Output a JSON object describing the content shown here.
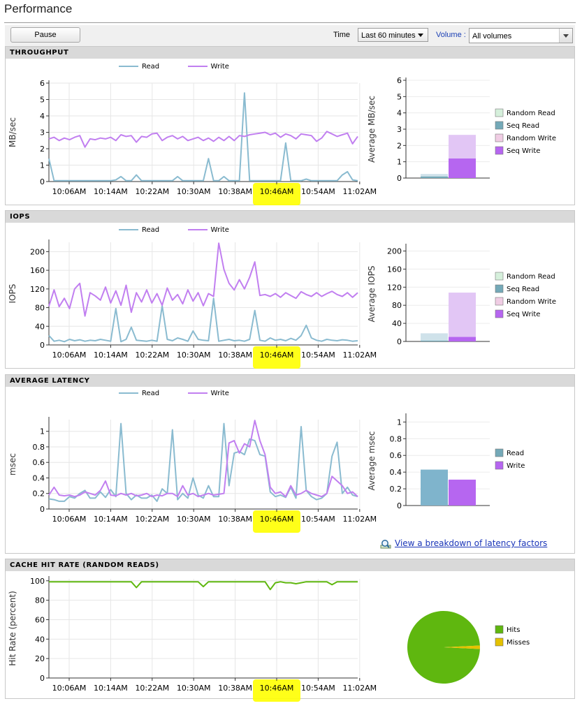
{
  "page": {
    "title": "Performance"
  },
  "toolbar": {
    "pause_label": "Pause",
    "time_label": "Time",
    "time_value": "Last 60 minutes",
    "volume_label": "Volume :",
    "volume_value": "All volumes"
  },
  "colors": {
    "read": "#8abbd0",
    "write": "#c17ff0",
    "hits": "#5fb70f",
    "misses": "#e5c200",
    "highlight": "#ffff00"
  },
  "legend": {
    "read": "Read",
    "write": "Write"
  },
  "time_ticks": [
    "10:06AM",
    "10:14AM",
    "10:22AM",
    "10:30AM",
    "10:38AM",
    "10:46AM",
    "10:54AM",
    "11:02AM"
  ],
  "panels": {
    "throughput": {
      "header": "THROUGHPUT",
      "ylabel": "MB/sec",
      "bar_ylabel": "Average MB/sec",
      "bar_legend": [
        "Random Read",
        "Seq Read",
        "Random Write",
        "Seq Write"
      ]
    },
    "iops": {
      "header": "IOPS",
      "ylabel": "IOPS",
      "bar_ylabel": "Average IOPS",
      "bar_legend": [
        "Random Read",
        "Seq Read",
        "Random Write",
        "Seq Write"
      ]
    },
    "latency": {
      "header": "AVERAGE LATENCY",
      "ylabel": "msec",
      "bar_ylabel": "Average msec",
      "bar_legend": [
        "Read",
        "Write"
      ],
      "link_text": "View a breakdown of latency factors"
    },
    "cache": {
      "header": "CACHE HIT RATE (RANDOM READS)",
      "ylabel": "Hit Rate (percent)",
      "pie_legend": [
        "Hits",
        "Misses"
      ]
    }
  },
  "chart_data": [
    {
      "type": "line",
      "id": "throughput",
      "xlabel": "",
      "ylabel": "MB/sec",
      "ylim": [
        0,
        6
      ],
      "yticks": [
        0,
        1,
        2,
        3,
        4,
        5,
        6
      ],
      "series": [
        {
          "name": "Read",
          "values": [
            1.4,
            0.05,
            0.05,
            0.05,
            0.05,
            0.05,
            0.05,
            0.05,
            0.05,
            0.05,
            0.05,
            0.05,
            0.05,
            0.1,
            0.3,
            0.05,
            0.05,
            0.4,
            0.05,
            0.05,
            0.05,
            0.05,
            0.05,
            0.05,
            0.05,
            0.3,
            0.05,
            0.05,
            0.05,
            0.05,
            0.05,
            1.4,
            0.05,
            0.05,
            0.3,
            0.05,
            0.05,
            0.05,
            5.4,
            0.05,
            0.05,
            0.05,
            0.05,
            0.05,
            0.05,
            0.05,
            2.35,
            0.05,
            0.05,
            0.05,
            0.15,
            0.05,
            0.05,
            0.05,
            0.05,
            0.05,
            0.05,
            0.4,
            0.6,
            0.1,
            0.05
          ]
        },
        {
          "name": "Write",
          "values": [
            2.6,
            2.7,
            2.5,
            2.65,
            2.55,
            2.7,
            2.8,
            2.1,
            2.6,
            2.55,
            2.65,
            2.6,
            2.7,
            2.5,
            2.85,
            2.75,
            2.8,
            2.4,
            2.75,
            2.7,
            2.9,
            2.95,
            2.5,
            2.7,
            2.8,
            2.6,
            2.75,
            2.5,
            2.6,
            2.7,
            2.5,
            2.65,
            2.45,
            2.7,
            2.5,
            2.75,
            2.5,
            2.8,
            2.75,
            2.85,
            2.9,
            2.95,
            3.0,
            2.85,
            2.95,
            2.7,
            2.9,
            2.8,
            2.6,
            2.9,
            2.85,
            2.8,
            2.45,
            2.65,
            3.05,
            2.9,
            2.75,
            2.85,
            2.95,
            2.3,
            2.75
          ]
        }
      ]
    },
    {
      "type": "bar",
      "id": "throughput_avg",
      "ylabel": "Average MB/sec",
      "ylim": [
        0,
        6
      ],
      "yticks": [
        0,
        1,
        2,
        3,
        4,
        5,
        6
      ],
      "stacks": [
        {
          "name": "Read",
          "segments": [
            {
              "name": "Seq Read",
              "value": 0.1,
              "color": "#74a9b8"
            },
            {
              "name": "Random Read",
              "value": 0.15,
              "color": "#cfe2ea"
            }
          ]
        },
        {
          "name": "Write",
          "segments": [
            {
              "name": "Seq Write",
              "value": 1.2,
              "color": "#b666f0"
            },
            {
              "name": "Random Write",
              "value": 1.45,
              "color": "#e2c6f5"
            }
          ]
        }
      ],
      "legend": [
        {
          "name": "Random Read",
          "color": "#d6f0dc"
        },
        {
          "name": "Seq Read",
          "color": "#74a9b8"
        },
        {
          "name": "Random Write",
          "color": "#f0cde4"
        },
        {
          "name": "Seq Write",
          "color": "#b666f0"
        }
      ]
    },
    {
      "type": "line",
      "id": "iops",
      "ylabel": "IOPS",
      "ylim": [
        0,
        220
      ],
      "yticks": [
        0,
        40,
        80,
        120,
        160,
        200
      ],
      "series": [
        {
          "name": "Read",
          "values": [
            20,
            8,
            10,
            7,
            12,
            9,
            11,
            8,
            10,
            9,
            12,
            10,
            8,
            78,
            7,
            12,
            38,
            10,
            9,
            8,
            10,
            8,
            84,
            12,
            9,
            15,
            12,
            8,
            30,
            12,
            10,
            9,
            100,
            8,
            10,
            12,
            9,
            10,
            8,
            12,
            74,
            10,
            8,
            15,
            10,
            12,
            9,
            14,
            10,
            20,
            42,
            15,
            10,
            8,
            12,
            10,
            9,
            11,
            10,
            8,
            9
          ]
        },
        {
          "name": "Write",
          "values": [
            83,
            118,
            82,
            100,
            78,
            120,
            132,
            62,
            112,
            105,
            96,
            124,
            90,
            116,
            85,
            128,
            70,
            112,
            92,
            118,
            90,
            110,
            85,
            122,
            96,
            108,
            88,
            118,
            94,
            112,
            84,
            110,
            104,
            218,
            162,
            132,
            118,
            140,
            120,
            145,
            178,
            106,
            108,
            104,
            110,
            102,
            112,
            106,
            100,
            114,
            108,
            104,
            112,
            104,
            110,
            115,
            108,
            104,
            112,
            102,
            112
          ]
        }
      ]
    },
    {
      "type": "bar",
      "id": "iops_avg",
      "ylabel": "Average IOPS",
      "ylim": [
        0,
        210
      ],
      "yticks": [
        0,
        40,
        80,
        120,
        160,
        200
      ],
      "stacks": [
        {
          "name": "Read",
          "segments": [
            {
              "name": "Seq Read",
              "value": 2,
              "color": "#74a9b8"
            },
            {
              "name": "Random Read",
              "value": 16,
              "color": "#cfe2ea"
            }
          ]
        },
        {
          "name": "Write",
          "segments": [
            {
              "name": "Seq Write",
              "value": 10,
              "color": "#b666f0"
            },
            {
              "name": "Random Write",
              "value": 98,
              "color": "#e2c6f5"
            }
          ]
        }
      ],
      "legend": [
        {
          "name": "Random Read",
          "color": "#d6f0dc"
        },
        {
          "name": "Seq Read",
          "color": "#74a9b8"
        },
        {
          "name": "Random Write",
          "color": "#f0cde4"
        },
        {
          "name": "Seq Write",
          "color": "#b666f0"
        }
      ]
    },
    {
      "type": "line",
      "id": "latency",
      "ylabel": "msec",
      "ylim": [
        0,
        1.15
      ],
      "yticks": [
        0,
        0.2,
        0.4,
        0.6,
        0.8,
        1
      ],
      "ytick_labels": [
        "0",
        "0.2",
        "0.4",
        "0.6",
        "0.8",
        "1"
      ],
      "series": [
        {
          "name": "Read",
          "values": [
            0.13,
            0.12,
            0.1,
            0.1,
            0.16,
            0.14,
            0.2,
            0.24,
            0.14,
            0.14,
            0.22,
            0.15,
            0.25,
            0.16,
            1.1,
            0.2,
            0.12,
            0.18,
            0.14,
            0.14,
            0.18,
            0.1,
            0.26,
            0.2,
            1.02,
            0.12,
            0.2,
            0.14,
            0.4,
            0.18,
            0.14,
            0.3,
            0.16,
            0.16,
            1.1,
            0.3,
            0.72,
            0.74,
            0.7,
            0.9,
            0.88,
            0.7,
            0.68,
            0.22,
            0.16,
            0.18,
            0.15,
            0.28,
            0.14,
            1.06,
            0.24,
            0.16,
            0.12,
            0.14,
            0.2,
            0.68,
            0.86,
            0.2,
            0.28,
            0.18,
            0.16
          ]
        },
        {
          "name": "Write",
          "values": [
            0.18,
            0.28,
            0.18,
            0.17,
            0.18,
            0.16,
            0.18,
            0.22,
            0.2,
            0.18,
            0.24,
            0.36,
            0.18,
            0.17,
            0.2,
            0.18,
            0.2,
            0.17,
            0.18,
            0.2,
            0.16,
            0.18,
            0.17,
            0.2,
            0.2,
            0.16,
            0.3,
            0.18,
            0.2,
            0.16,
            0.18,
            0.2,
            0.18,
            0.19,
            0.2,
            0.85,
            0.88,
            0.72,
            0.84,
            0.8,
            1.14,
            0.88,
            0.7,
            0.28,
            0.2,
            0.22,
            0.16,
            0.3,
            0.18,
            0.2,
            0.24,
            0.2,
            0.18,
            0.16,
            0.2,
            0.42,
            0.36,
            0.3,
            0.2,
            0.22,
            0.16
          ]
        }
      ]
    },
    {
      "type": "bar",
      "id": "latency_avg",
      "ylabel": "Average msec",
      "ylim": [
        0,
        1.07
      ],
      "yticks": [
        0,
        0.2,
        0.4,
        0.6,
        0.8,
        1
      ],
      "ytick_labels": [
        "0",
        "0.2",
        "0.4",
        "0.6",
        "0.8",
        "1"
      ],
      "stacks": [
        {
          "name": "Read",
          "segments": [
            {
              "name": "Read",
              "value": 0.43,
              "color": "#7fb4cc"
            }
          ]
        },
        {
          "name": "Write",
          "segments": [
            {
              "name": "Write",
              "value": 0.31,
              "color": "#b666f0"
            }
          ]
        }
      ],
      "legend": [
        {
          "name": "Read",
          "color": "#74a9b8"
        },
        {
          "name": "Write",
          "color": "#b666f0"
        }
      ]
    },
    {
      "type": "line",
      "id": "cache",
      "ylabel": "Hit Rate (percent)",
      "ylim": [
        0,
        102
      ],
      "yticks": [
        0,
        20,
        40,
        60,
        80,
        100
      ],
      "series": [
        {
          "name": "Hits",
          "values": [
            99,
            99,
            99,
            99,
            99,
            99,
            99,
            99,
            99,
            99,
            99,
            99,
            99,
            99,
            99,
            99,
            99,
            93,
            99,
            99,
            99,
            99,
            99,
            99,
            99,
            99,
            99,
            99,
            99,
            99,
            94,
            99,
            99,
            99,
            99,
            99,
            99,
            99,
            99,
            99,
            99,
            99,
            99,
            91,
            98,
            99,
            98,
            98,
            97,
            98,
            99,
            99,
            99,
            99,
            99,
            96,
            99,
            99,
            99,
            99,
            99
          ]
        }
      ]
    },
    {
      "type": "pie",
      "id": "cache_pie",
      "slices": [
        {
          "name": "Hits",
          "value": 98.5,
          "color": "#5fb70f"
        },
        {
          "name": "Misses",
          "value": 1.5,
          "color": "#e5c200"
        }
      ]
    }
  ]
}
